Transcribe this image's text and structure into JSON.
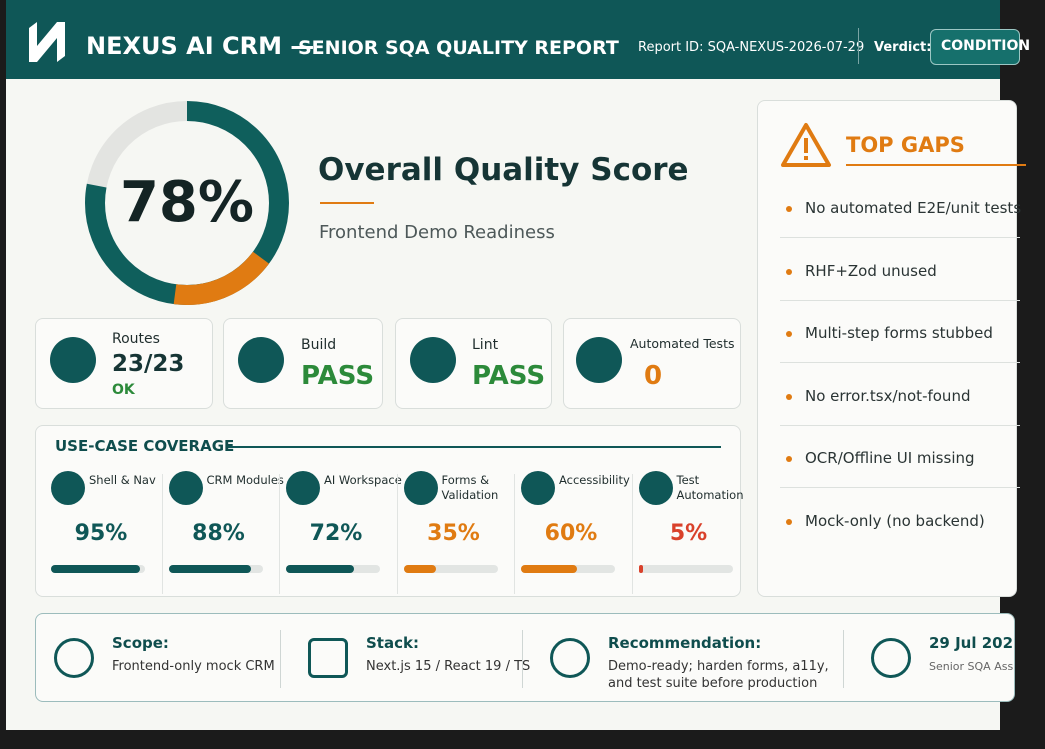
{
  "header": {
    "title": "NEXUS AI CRM —",
    "subtitle": "SENIOR SQA QUALITY REPORT",
    "report_id": "Report ID: SQA-NEXUS-2026-07-29",
    "verdict_label": "Verdict:",
    "verdict": "CONDITION"
  },
  "score": {
    "value": 78,
    "label": "78%",
    "title": "Overall Quality Score",
    "subtitle": "Frontend Demo Readiness"
  },
  "stats": [
    {
      "label": "Routes",
      "value": "23/23",
      "note": "OK"
    },
    {
      "label": "Build",
      "value": "PASS"
    },
    {
      "label": "Lint",
      "value": "PASS"
    },
    {
      "label": "Automated Tests",
      "value": "0"
    }
  ],
  "coverage": {
    "title": "USE-CASE COVERAGE",
    "items": [
      {
        "name": "Shell & Nav",
        "value": 95,
        "label": "95%",
        "color": "#0f5757"
      },
      {
        "name": "CRM Modules",
        "value": 88,
        "label": "88%",
        "color": "#0f5757"
      },
      {
        "name": "AI Workspace",
        "value": 72,
        "label": "72%",
        "color": "#0f5757"
      },
      {
        "name": "Forms & Validation",
        "value": 35,
        "label": "35%",
        "color": "#e07b12"
      },
      {
        "name": "Accessibility",
        "value": 60,
        "label": "60%",
        "color": "#e07b12"
      },
      {
        "name": "Test Automation",
        "value": 5,
        "label": "5%",
        "color": "#d9412b"
      }
    ]
  },
  "gaps": {
    "title": "TOP GAPS",
    "items": [
      "No automated E2E/unit tests",
      "RHF+Zod unused",
      "Multi-step forms stubbed",
      "No error.tsx/not-found",
      "OCR/Offline UI missing",
      "Mock-only (no backend)"
    ]
  },
  "footer": [
    {
      "title": "Scope:",
      "text": "Frontend-only mock CRM"
    },
    {
      "title": "Stack:",
      "text": "Next.js 15 / React 19 / TS"
    },
    {
      "title": "Recommendation:",
      "text": "Demo-ready; harden forms, a11y, and test suite before production"
    },
    {
      "title": "29 Jul 202",
      "text": "Senior SQA Ass"
    }
  ]
}
